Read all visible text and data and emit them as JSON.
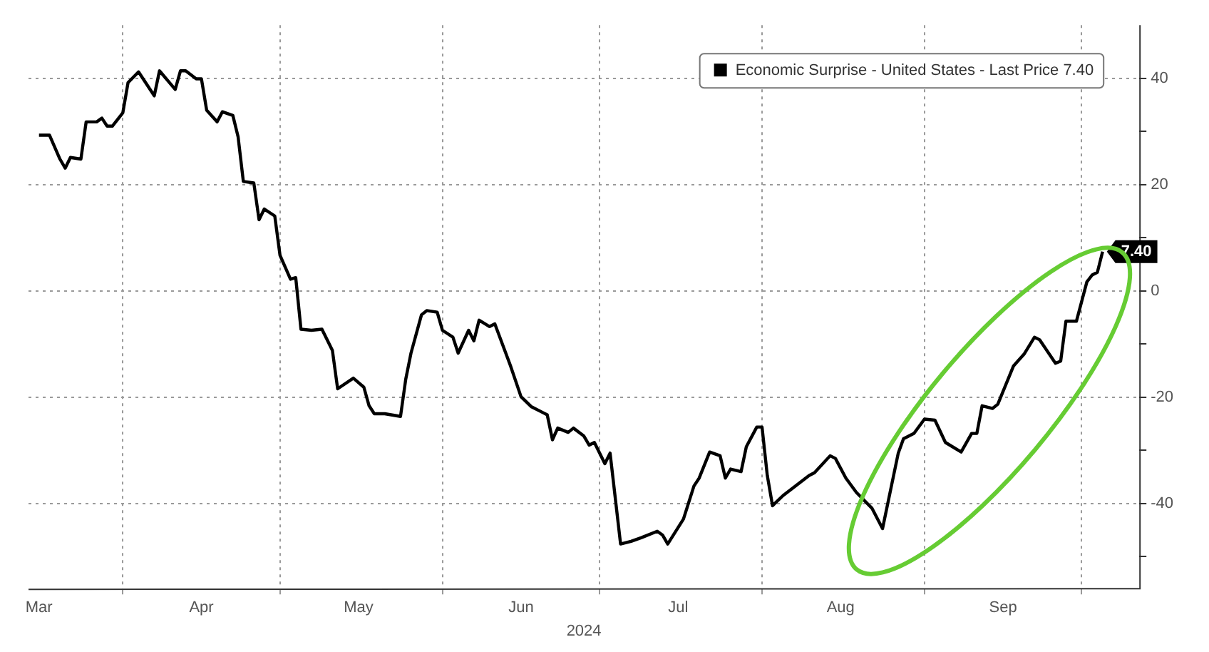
{
  "chart_data": {
    "type": "line",
    "xlabel": "2024",
    "legend": "top right",
    "grid": true,
    "line_style": "solid",
    "marker": "none",
    "xlim": [
      "2024-03-14",
      "2024-10-12"
    ],
    "xticks": [
      {
        "value": "2024-03-16",
        "label": "Mar"
      },
      {
        "value": "2024-04-01",
        "label": null
      },
      {
        "value": "2024-04-16",
        "label": "Apr"
      },
      {
        "value": "2024-05-01",
        "label": null
      },
      {
        "value": "2024-05-16",
        "label": "May"
      },
      {
        "value": "2024-06-01",
        "label": null
      },
      {
        "value": "2024-06-16",
        "label": "Jun"
      },
      {
        "value": "2024-07-01",
        "label": null
      },
      {
        "value": "2024-07-16",
        "label": "Jul"
      },
      {
        "value": "2024-08-01",
        "label": null
      },
      {
        "value": "2024-08-16",
        "label": "Aug"
      },
      {
        "value": "2024-09-01",
        "label": null
      },
      {
        "value": "2024-09-16",
        "label": "Sep"
      },
      {
        "value": "2024-10-01",
        "label": null
      }
    ],
    "ylim": [
      -56,
      50
    ],
    "yticks": [
      {
        "value": -50,
        "label": null
      },
      -40,
      {
        "value": -30,
        "label": null
      },
      -20,
      {
        "value": -10,
        "label": null
      },
      0,
      {
        "value": 10,
        "label": null
      },
      20,
      {
        "value": 30,
        "label": null
      },
      40
    ],
    "annotations": [
      {
        "text": "7.40",
        "x": "2024-10-05",
        "y": 7.4
      }
    ],
    "series": [
      {
        "name": "Economic Surprise - United States - Last Price 7.40",
        "color": "#000000",
        "x": [
          "2024-03-16",
          "2024-03-18",
          "2024-03-20",
          "2024-03-21",
          "2024-03-22",
          "2024-03-24",
          "2024-03-25",
          "2024-03-27",
          "2024-03-28",
          "2024-03-29",
          "2024-03-30",
          "2024-04-01",
          "2024-04-02",
          "2024-04-04",
          "2024-04-07",
          "2024-04-08",
          "2024-04-11",
          "2024-04-12",
          "2024-04-13",
          "2024-04-15",
          "2024-04-16",
          "2024-04-17",
          "2024-04-19",
          "2024-04-20",
          "2024-04-22",
          "2024-04-23",
          "2024-04-24",
          "2024-04-26",
          "2024-04-27",
          "2024-04-28",
          "2024-04-30",
          "2024-05-01",
          "2024-05-03",
          "2024-05-04",
          "2024-05-05",
          "2024-05-07",
          "2024-05-09",
          "2024-05-11",
          "2024-05-12",
          "2024-05-15",
          "2024-05-17",
          "2024-05-18",
          "2024-05-19",
          "2024-05-21",
          "2024-05-24",
          "2024-05-25",
          "2024-05-26",
          "2024-05-28",
          "2024-05-29",
          "2024-05-31",
          "2024-06-01",
          "2024-06-03",
          "2024-06-04",
          "2024-06-06",
          "2024-06-07",
          "2024-06-08",
          "2024-06-10",
          "2024-06-11",
          "2024-06-14",
          "2024-06-16",
          "2024-06-18",
          "2024-06-21",
          "2024-06-22",
          "2024-06-23",
          "2024-06-25",
          "2024-06-26",
          "2024-06-28",
          "2024-06-29",
          "2024-06-30",
          "2024-07-02",
          "2024-07-03",
          "2024-07-05",
          "2024-07-07",
          "2024-07-09",
          "2024-07-12",
          "2024-07-13",
          "2024-07-14",
          "2024-07-17",
          "2024-07-19",
          "2024-07-20",
          "2024-07-22",
          "2024-07-24",
          "2024-07-25",
          "2024-07-26",
          "2024-07-28",
          "2024-07-29",
          "2024-07-31",
          "2024-08-01",
          "2024-08-02",
          "2024-08-03",
          "2024-08-05",
          "2024-08-10",
          "2024-08-11",
          "2024-08-14",
          "2024-08-15",
          "2024-08-17",
          "2024-08-19",
          "2024-08-22",
          "2024-08-24",
          "2024-08-27",
          "2024-08-28",
          "2024-08-30",
          "2024-09-01",
          "2024-09-03",
          "2024-09-05",
          "2024-09-08",
          "2024-09-10",
          "2024-09-11",
          "2024-09-12",
          "2024-09-14",
          "2024-09-15",
          "2024-09-18",
          "2024-09-20",
          "2024-09-22",
          "2024-09-23",
          "2024-09-26",
          "2024-09-27",
          "2024-09-28",
          "2024-09-30",
          "2024-10-02",
          "2024-10-03",
          "2024-10-04",
          "2024-10-05"
        ],
        "values": [
          29.3,
          29.3,
          24.8,
          23.1,
          25.1,
          24.8,
          31.8,
          31.8,
          32.5,
          31.0,
          31.0,
          33.5,
          39.2,
          41.2,
          36.7,
          41.4,
          37.9,
          41.4,
          41.4,
          39.9,
          39.9,
          34.0,
          31.8,
          33.7,
          33.0,
          29.0,
          20.6,
          20.3,
          13.4,
          15.4,
          14.1,
          6.7,
          2.2,
          2.5,
          -7.2,
          -7.4,
          -7.2,
          -11.2,
          -18.4,
          -16.4,
          -18.1,
          -21.6,
          -23.1,
          -23.1,
          -23.6,
          -16.6,
          -11.7,
          -4.5,
          -3.7,
          -4.0,
          -7.4,
          -8.7,
          -11.7,
          -7.4,
          -9.4,
          -5.5,
          -6.7,
          -6.2,
          -14.1,
          -19.9,
          -21.8,
          -23.3,
          -28.0,
          -25.8,
          -26.6,
          -25.8,
          -27.3,
          -29.0,
          -28.5,
          -32.5,
          -30.5,
          -47.6,
          -47.1,
          -46.4,
          -45.2,
          -45.9,
          -47.6,
          -42.9,
          -36.7,
          -35.2,
          -30.3,
          -31.0,
          -35.2,
          -33.5,
          -34.0,
          -29.3,
          -25.6,
          -25.6,
          -34.7,
          -40.4,
          -38.5,
          -34.7,
          -34.2,
          -31.0,
          -31.5,
          -35.2,
          -37.9,
          -40.9,
          -44.7,
          -30.5,
          -27.8,
          -26.8,
          -24.1,
          -24.3,
          -28.5,
          -30.3,
          -26.8,
          -26.8,
          -21.6,
          -22.1,
          -21.3,
          -14.1,
          -11.9,
          -8.7,
          -9.2,
          -13.6,
          -13.2,
          -5.7,
          -5.7,
          1.7,
          3.0,
          3.5,
          7.4
        ]
      }
    ]
  }
}
